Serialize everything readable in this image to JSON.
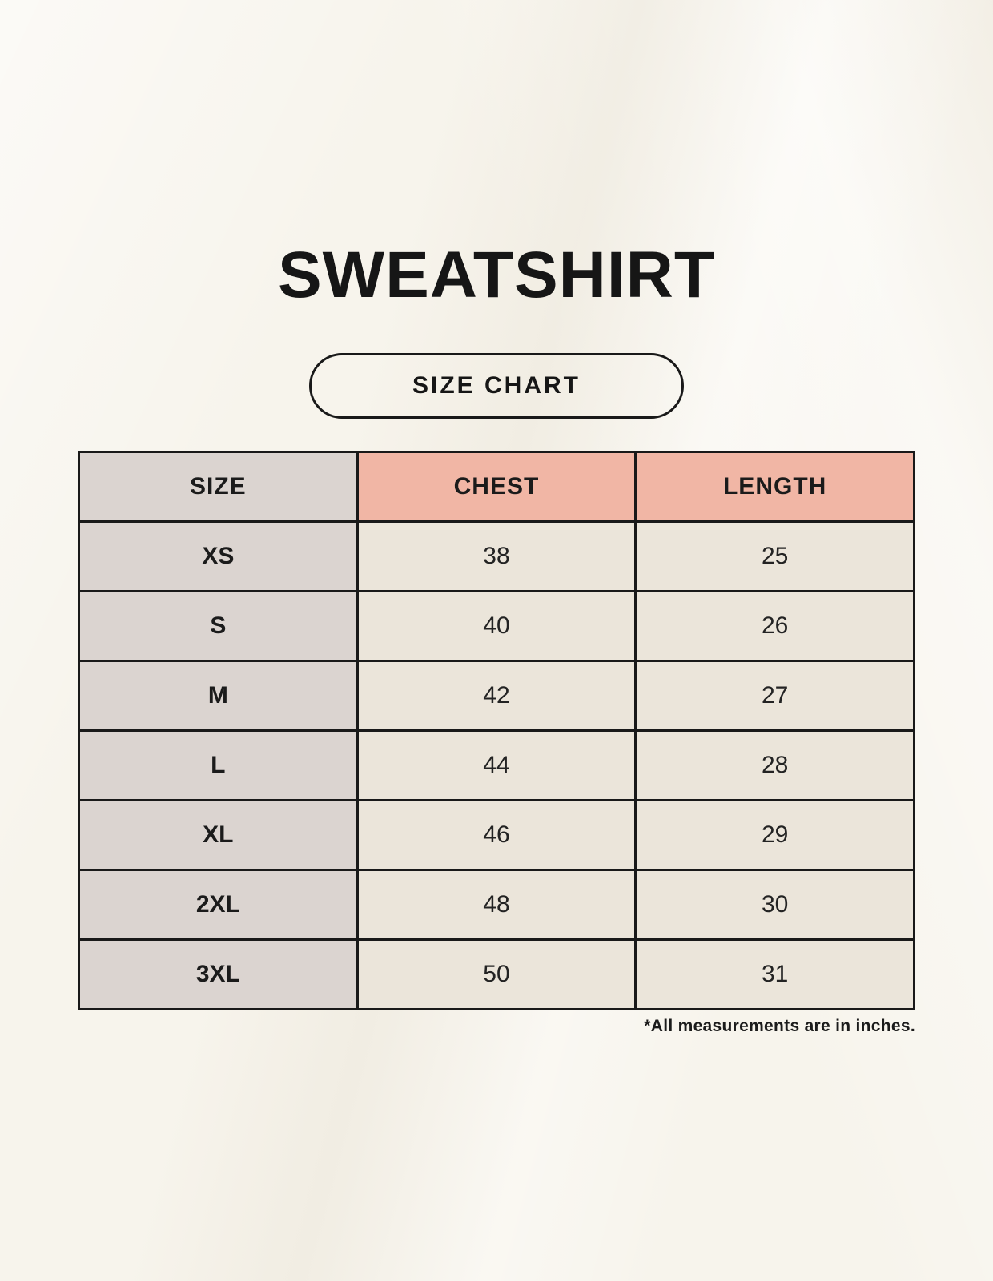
{
  "page": {
    "title": "SWEATSHIRT",
    "badge_label": "SIZE CHART",
    "footnote": "*All measurements are in inches."
  },
  "colors": {
    "background": "#f7f4ec",
    "header_accent": "#f1b6a5",
    "size_column": "#dbd4d0",
    "data_cell": "#ebe5da",
    "table_border": "#191919",
    "text": "#1b1b1b"
  },
  "chart_data": {
    "type": "table",
    "title": "SWEATSHIRT",
    "subtitle": "SIZE CHART",
    "units_note": "*All measurements are in inches.",
    "columns": [
      "SIZE",
      "CHEST",
      "LENGTH"
    ],
    "rows": [
      {
        "size": "XS",
        "chest": 38,
        "length": 25
      },
      {
        "size": "S",
        "chest": 40,
        "length": 26
      },
      {
        "size": "M",
        "chest": 42,
        "length": 27
      },
      {
        "size": "L",
        "chest": 44,
        "length": 28
      },
      {
        "size": "XL",
        "chest": 46,
        "length": 29
      },
      {
        "size": "2XL",
        "chest": 48,
        "length": 30
      },
      {
        "size": "3XL",
        "chest": 50,
        "length": 31
      }
    ]
  }
}
